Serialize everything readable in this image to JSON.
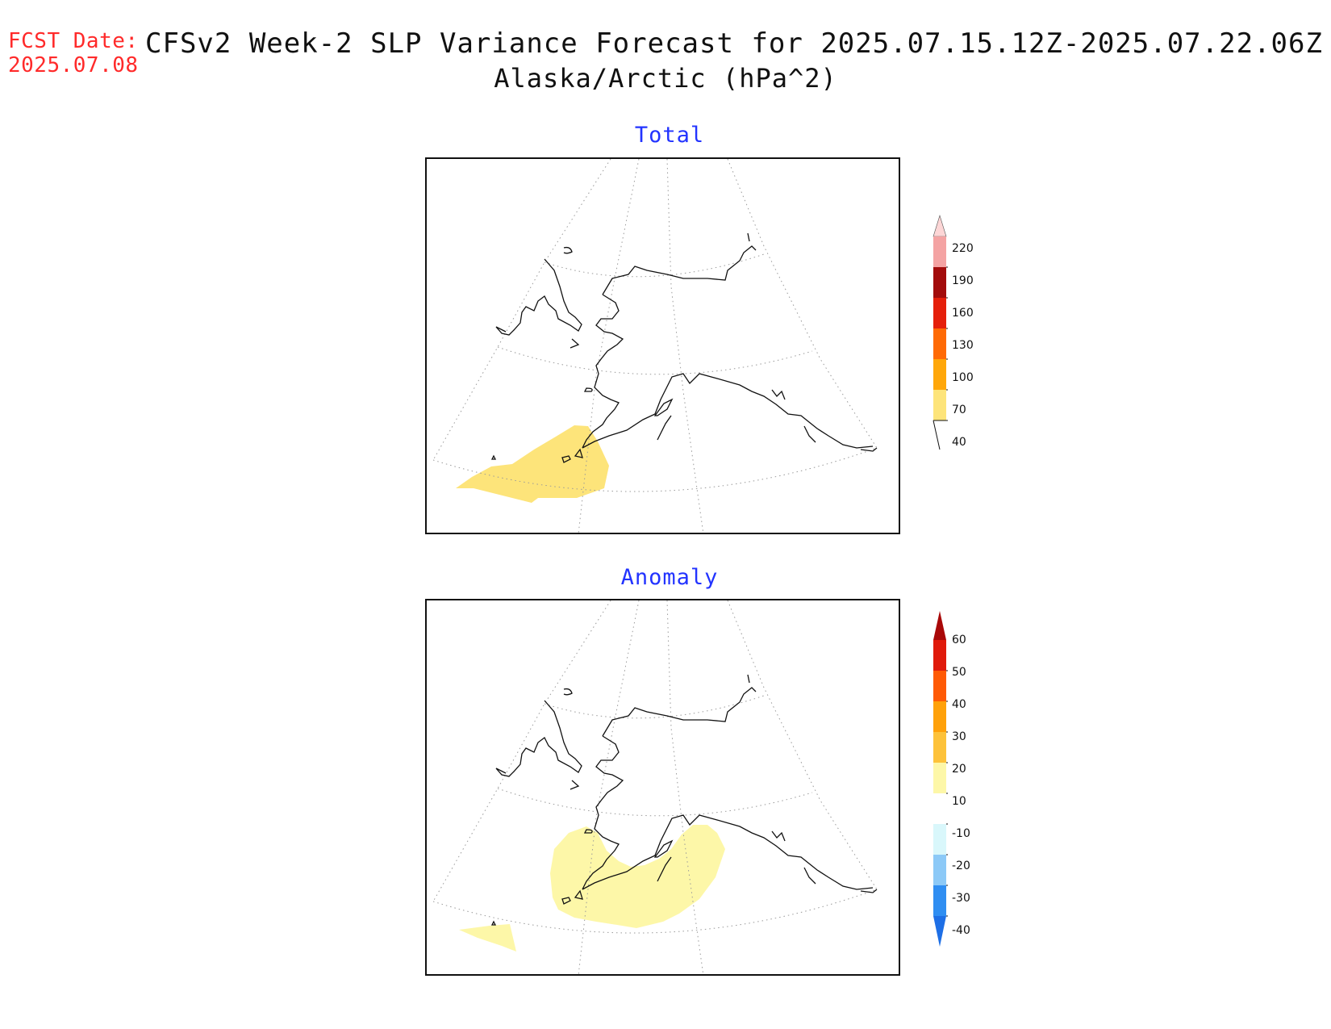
{
  "header": {
    "fcst_label": "FCST Date:",
    "fcst_date": "2025.07.08",
    "title": "CFSv2 Week-2 SLP Variance Forecast for 2025.07.15.12Z-2025.07.22.06Z",
    "subtitle": "Alaska/Arctic (hPa^2)"
  },
  "panels": [
    {
      "title": "Total",
      "colorbar": {
        "levels": [
          "40",
          "70",
          "100",
          "130",
          "160",
          "190",
          "220"
        ],
        "colors": [
          "#fde47a",
          "#ffa70a",
          "#ff6a05",
          "#e51f0b",
          "#a30c0c",
          "#f4a3a3",
          "#fdd6d6"
        ]
      }
    },
    {
      "title": "Anomaly",
      "colorbar": {
        "levels": [
          "-40",
          "-30",
          "-20",
          "-10",
          "10",
          "20",
          "30",
          "40",
          "50",
          "60"
        ],
        "colors": [
          "#1e6fe6",
          "#2f8ef2",
          "#8cc9f7",
          "#d9f7fb",
          "#ffffff",
          "#fdf7a8",
          "#fdc23a",
          "#ffa10a",
          "#ff5a05",
          "#e01a0b",
          "#a90808"
        ]
      }
    }
  ],
  "colors": {
    "fill_total": "#fde47a",
    "fill_anomaly": "#fdf7a8",
    "title_blue": "#2233ff",
    "fcst_red": "#ff2a2a"
  }
}
